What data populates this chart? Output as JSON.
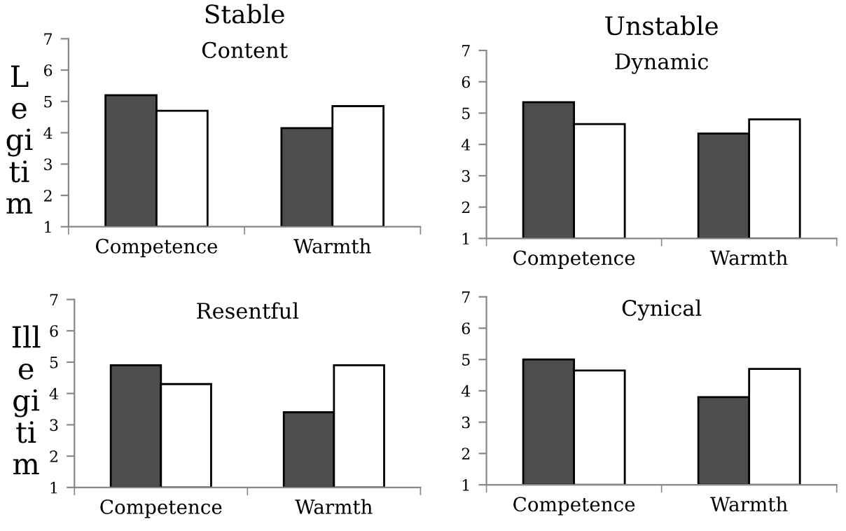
{
  "chart_data": [
    {
      "type": "bar",
      "title": "Content",
      "subtitle": "Stable",
      "ylabel": "L\ne\ngi\nti\nm",
      "categories": [
        "Competence",
        "Warmth"
      ],
      "series": [
        {
          "color": "#4d4d4d",
          "values": [
            5.2,
            4.15
          ]
        },
        {
          "color": "#ffffff",
          "values": [
            4.7,
            4.85
          ]
        }
      ],
      "ylim": [
        1,
        7
      ],
      "yticks": [
        1,
        2,
        3,
        4,
        5,
        6,
        7
      ],
      "grid": false,
      "legend": false
    },
    {
      "type": "bar",
      "title": "Dynamic",
      "subtitle": "Unstable",
      "categories": [
        "Competence",
        "Warmth"
      ],
      "series": [
        {
          "color": "#4d4d4d",
          "values": [
            5.35,
            4.35
          ]
        },
        {
          "color": "#ffffff",
          "values": [
            4.65,
            4.8
          ]
        }
      ],
      "ylim": [
        1,
        7
      ],
      "yticks": [
        1,
        2,
        3,
        4,
        5,
        6,
        7
      ],
      "grid": false,
      "legend": false
    },
    {
      "type": "bar",
      "title": "Resentful",
      "ylabel": "Ill\ne\ngi\nti\nm",
      "categories": [
        "Competence",
        "Warmth"
      ],
      "series": [
        {
          "color": "#4d4d4d",
          "values": [
            4.9,
            3.4
          ]
        },
        {
          "color": "#ffffff",
          "values": [
            4.3,
            4.9
          ]
        }
      ],
      "ylim": [
        1,
        7
      ],
      "yticks": [
        1,
        2,
        3,
        4,
        5,
        6,
        7
      ],
      "grid": false,
      "legend": false
    },
    {
      "type": "bar",
      "title": "Cynical",
      "categories": [
        "Competence",
        "Warmth"
      ],
      "series": [
        {
          "color": "#4d4d4d",
          "values": [
            5.0,
            3.8
          ]
        },
        {
          "color": "#ffffff",
          "values": [
            4.65,
            4.7
          ]
        }
      ],
      "ylim": [
        1,
        7
      ],
      "yticks": [
        1,
        2,
        3,
        4,
        5,
        6,
        7
      ],
      "grid": false,
      "legend": false
    }
  ]
}
